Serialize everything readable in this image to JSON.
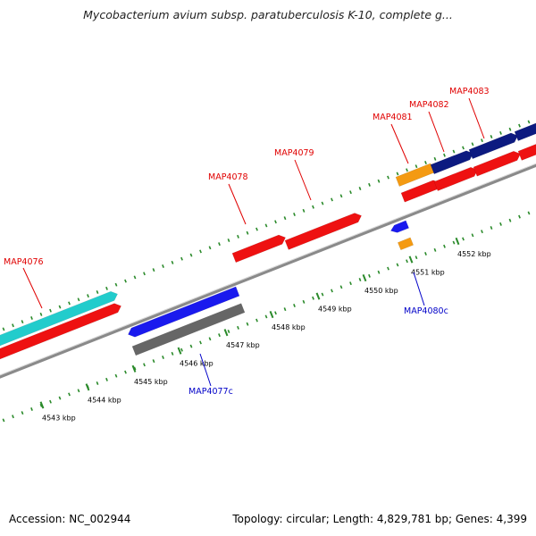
{
  "title": "Mycobacterium avium subsp. paratuberculosis K-10, complete g...",
  "footer": {
    "accession": "Accession: NC_002944",
    "info": "Topology: circular; Length: 4,829,781 bp; Genes: 4,399"
  },
  "colors": {
    "background": "#ffffff",
    "backbone": "#8c8c8c",
    "tick": "#2a8a2a",
    "forward_label": "#e00000",
    "reverse_label": "#0000c8",
    "cds": "#ee1111",
    "gene_cyan": "#22cccc",
    "gene_blue": "#1a1aee",
    "gene_gray": "#666666",
    "gene_navy": "#0c1a80",
    "gene_orange": "#f49a12"
  },
  "ticks": [
    {
      "label": "4543 kbp"
    },
    {
      "label": "4544 kbp"
    },
    {
      "label": "4545 kbp"
    },
    {
      "label": "4546 kbp"
    },
    {
      "label": "4547 kbp"
    },
    {
      "label": "4548 kbp"
    },
    {
      "label": "4549 kbp"
    },
    {
      "label": "4550 kbp"
    },
    {
      "label": "4551 kbp"
    },
    {
      "label": "4552 kbp"
    }
  ],
  "gene_labels": [
    {
      "name": "MAP4076",
      "strand": "forward"
    },
    {
      "name": "MAP4077c",
      "strand": "reverse"
    },
    {
      "name": "MAP4078",
      "strand": "forward"
    },
    {
      "name": "MAP4079",
      "strand": "forward"
    },
    {
      "name": "MAP4080c",
      "strand": "reverse"
    },
    {
      "name": "MAP4081",
      "strand": "forward"
    },
    {
      "name": "MAP4082",
      "strand": "forward"
    },
    {
      "name": "MAP4083",
      "strand": "forward"
    }
  ]
}
